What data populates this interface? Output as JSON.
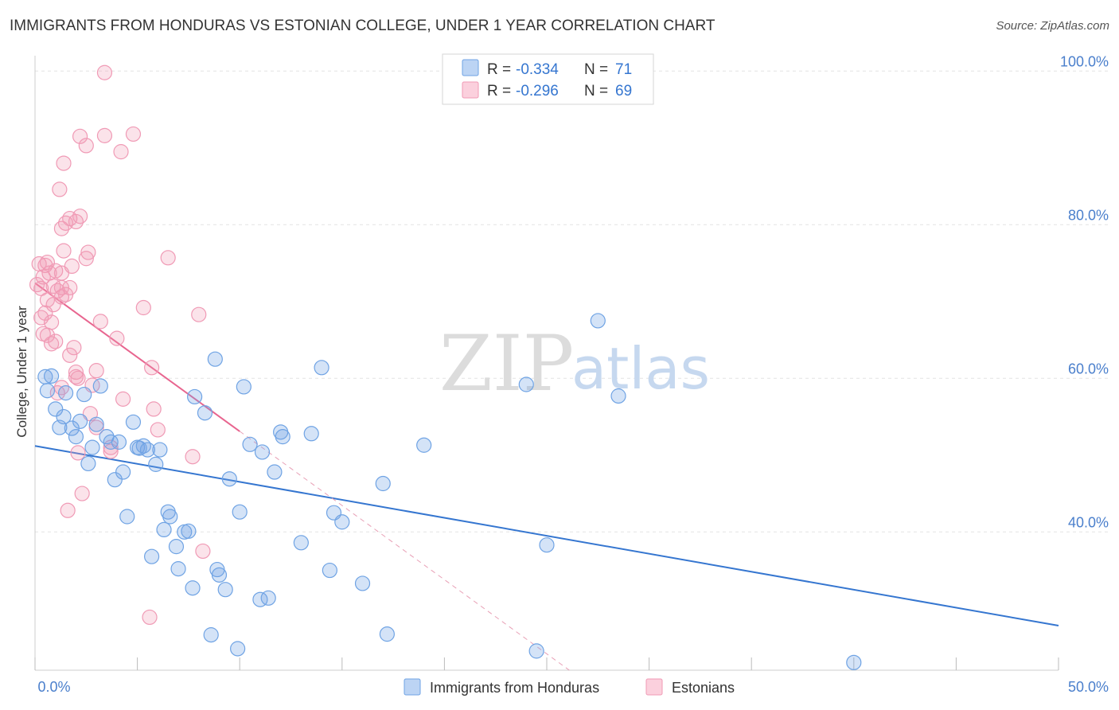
{
  "title": "IMMIGRANTS FROM HONDURAS VS ESTONIAN COLLEGE, UNDER 1 YEAR CORRELATION CHART",
  "source": "Source: ZipAtlas.com",
  "watermark": {
    "zip": "ZIP",
    "atlas": "atlas"
  },
  "colors": {
    "blue": "#6fa3e4",
    "blue_line": "#3576d0",
    "pink": "#f09ab5",
    "pink_line": "#e8658f",
    "axis_text": "#4a7fcc"
  },
  "legend_top": [
    {
      "r_label": "R = ",
      "r_value": "-0.334",
      "n_label": "N = ",
      "n_value": "71"
    },
    {
      "r_label": "R = ",
      "r_value": "-0.296",
      "n_label": "N = ",
      "n_value": "69"
    }
  ],
  "chart_data": {
    "type": "scatter",
    "title": "IMMIGRANTS FROM HONDURAS VS ESTONIAN COLLEGE, UNDER 1 YEAR CORRELATION CHART",
    "xlabel": "",
    "ylabel": "College, Under 1 year",
    "xlim": [
      0,
      50
    ],
    "ylim": [
      22,
      102
    ],
    "x_tick_labels": [
      "0.0%",
      "50.0%"
    ],
    "y_ticks": [
      40,
      60,
      80,
      100
    ],
    "y_tick_labels": [
      "40.0%",
      "60.0%",
      "80.0%",
      "100.0%"
    ],
    "grid": true,
    "legend_position": "bottom-center",
    "series": [
      {
        "name": "Immigrants from Honduras",
        "color": "#6fa3e4",
        "trend": {
          "x": [
            0,
            50
          ],
          "y": [
            51.2,
            27.8
          ]
        },
        "points": [
          [
            0.5,
            60.2
          ],
          [
            0.6,
            58.4
          ],
          [
            0.8,
            60.3
          ],
          [
            1.0,
            56.0
          ],
          [
            1.2,
            53.6
          ],
          [
            1.4,
            55.0
          ],
          [
            1.5,
            58.1
          ],
          [
            1.8,
            53.5
          ],
          [
            2.0,
            52.4
          ],
          [
            2.2,
            54.4
          ],
          [
            2.4,
            57.9
          ],
          [
            2.6,
            48.9
          ],
          [
            2.8,
            51.0
          ],
          [
            3.0,
            54.0
          ],
          [
            3.2,
            59.0
          ],
          [
            3.5,
            52.4
          ],
          [
            3.7,
            51.7
          ],
          [
            3.9,
            46.8
          ],
          [
            4.1,
            51.7
          ],
          [
            4.3,
            47.8
          ],
          [
            4.5,
            42.0
          ],
          [
            4.8,
            54.3
          ],
          [
            5.0,
            51.0
          ],
          [
            5.1,
            50.9
          ],
          [
            5.3,
            51.2
          ],
          [
            5.5,
            50.7
          ],
          [
            5.7,
            36.8
          ],
          [
            5.9,
            48.8
          ],
          [
            6.1,
            50.7
          ],
          [
            6.3,
            40.3
          ],
          [
            6.5,
            42.6
          ],
          [
            6.6,
            42.0
          ],
          [
            6.9,
            38.1
          ],
          [
            7.0,
            35.2
          ],
          [
            7.3,
            40.0
          ],
          [
            7.5,
            40.1
          ],
          [
            7.7,
            32.7
          ],
          [
            7.8,
            57.6
          ],
          [
            8.3,
            55.5
          ],
          [
            8.6,
            26.6
          ],
          [
            8.8,
            62.5
          ],
          [
            8.9,
            35.1
          ],
          [
            9.0,
            34.4
          ],
          [
            9.3,
            32.5
          ],
          [
            9.5,
            46.9
          ],
          [
            9.9,
            24.8
          ],
          [
            10.0,
            42.6
          ],
          [
            10.2,
            58.9
          ],
          [
            10.5,
            51.4
          ],
          [
            11.0,
            31.2
          ],
          [
            11.1,
            50.4
          ],
          [
            11.4,
            31.4
          ],
          [
            11.7,
            47.8
          ],
          [
            12.0,
            53.0
          ],
          [
            12.1,
            52.4
          ],
          [
            13.0,
            38.6
          ],
          [
            13.5,
            52.8
          ],
          [
            14.0,
            61.4
          ],
          [
            14.4,
            35.0
          ],
          [
            14.6,
            42.5
          ],
          [
            15.0,
            41.3
          ],
          [
            16.0,
            33.3
          ],
          [
            17.0,
            46.3
          ],
          [
            17.2,
            26.7
          ],
          [
            19.0,
            51.3
          ],
          [
            24.0,
            59.2
          ],
          [
            24.5,
            24.5
          ],
          [
            25.0,
            38.3
          ],
          [
            27.5,
            67.5
          ],
          [
            28.5,
            57.7
          ],
          [
            40.0,
            23.0
          ]
        ]
      },
      {
        "name": "Estonians",
        "color": "#f09ab5",
        "trend": {
          "x": [
            0,
            10
          ],
          "y": [
            72.4,
            53.1
          ]
        },
        "trend_extension": {
          "x": [
            10,
            27.5
          ],
          "y": [
            53.1,
            19.3
          ]
        },
        "points": [
          [
            0.2,
            74.9
          ],
          [
            0.3,
            71.7
          ],
          [
            0.3,
            67.9
          ],
          [
            0.4,
            73.2
          ],
          [
            0.4,
            65.8
          ],
          [
            0.5,
            74.7
          ],
          [
            0.5,
            68.5
          ],
          [
            0.6,
            75.1
          ],
          [
            0.6,
            70.2
          ],
          [
            0.6,
            65.6
          ],
          [
            0.7,
            73.7
          ],
          [
            0.8,
            67.3
          ],
          [
            0.8,
            64.5
          ],
          [
            0.9,
            72.0
          ],
          [
            0.9,
            69.6
          ],
          [
            1.0,
            74.0
          ],
          [
            1.0,
            64.8
          ],
          [
            1.1,
            71.4
          ],
          [
            1.1,
            58.1
          ],
          [
            1.2,
            84.6
          ],
          [
            1.3,
            79.5
          ],
          [
            1.3,
            73.7
          ],
          [
            1.3,
            71.8
          ],
          [
            1.3,
            70.6
          ],
          [
            1.3,
            58.8
          ],
          [
            1.4,
            88.0
          ],
          [
            1.4,
            76.6
          ],
          [
            1.5,
            80.2
          ],
          [
            1.5,
            70.9
          ],
          [
            1.6,
            42.8
          ],
          [
            1.7,
            80.8
          ],
          [
            1.7,
            71.8
          ],
          [
            1.7,
            63.0
          ],
          [
            1.8,
            74.6
          ],
          [
            1.9,
            64.0
          ],
          [
            2.0,
            80.4
          ],
          [
            2.0,
            60.8
          ],
          [
            2.0,
            60.2
          ],
          [
            2.1,
            50.3
          ],
          [
            2.1,
            60.0
          ],
          [
            2.2,
            81.1
          ],
          [
            2.2,
            91.5
          ],
          [
            2.3,
            45.0
          ],
          [
            2.5,
            90.3
          ],
          [
            2.5,
            75.6
          ],
          [
            2.6,
            76.4
          ],
          [
            2.7,
            55.4
          ],
          [
            2.8,
            59.1
          ],
          [
            3.0,
            53.6
          ],
          [
            3.0,
            61.0
          ],
          [
            3.2,
            67.4
          ],
          [
            3.4,
            99.8
          ],
          [
            3.4,
            91.6
          ],
          [
            3.7,
            50.5
          ],
          [
            4.0,
            65.2
          ],
          [
            4.2,
            89.5
          ],
          [
            4.3,
            57.3
          ],
          [
            4.8,
            91.8
          ],
          [
            5.3,
            69.2
          ],
          [
            5.6,
            28.9
          ],
          [
            5.7,
            61.4
          ],
          [
            5.8,
            56.0
          ],
          [
            6.0,
            53.3
          ],
          [
            6.5,
            75.7
          ],
          [
            7.7,
            49.8
          ],
          [
            8.0,
            68.3
          ],
          [
            8.2,
            37.5
          ],
          [
            3.7,
            51.0
          ],
          [
            0.1,
            72.2
          ]
        ]
      }
    ]
  }
}
